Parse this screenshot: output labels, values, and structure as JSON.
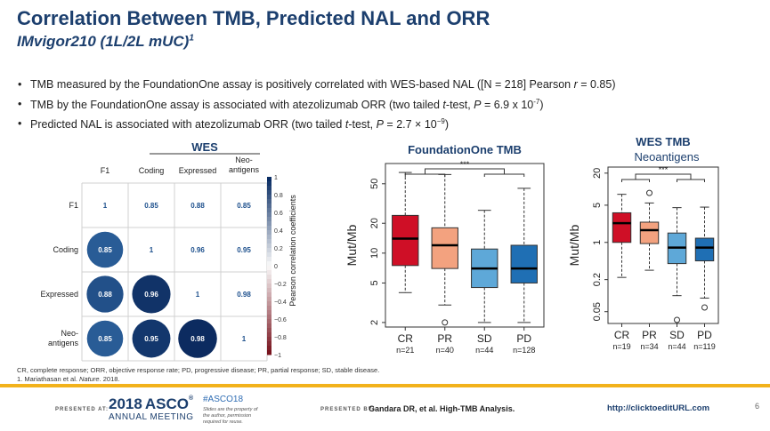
{
  "slide": {
    "title": "Correlation Between TMB, Predicted NAL and ORR",
    "subtitle": "IMvigor210 (1L/2L mUC)",
    "subtitle_ref": "1",
    "page_number": "6"
  },
  "bullets": [
    {
      "pre": "TMB measured by the FoundationOne assay is positively correlated with WES-based NAL ([N = 218] Pearson ",
      "r": "r",
      "post": " = 0.85)"
    },
    {
      "pre": "TMB by the FoundationOne assay is associated with atezolizumab ORR (two tailed ",
      "t": "t",
      "mid": "-test, ",
      "p": "P",
      "val": " = 6.9 x 10",
      "exp": "-7",
      "post": ")"
    },
    {
      "pre": "Predicted NAL is associated with atezolizumab ORR (two tailed ",
      "t": "t",
      "mid": "-test, ",
      "p": "P",
      "val": " = 2.7 × 10",
      "exp": "−9",
      "post": ")"
    }
  ],
  "colors": {
    "title": "#1c3f6e",
    "cr": "#cf0f26",
    "pr": "#f3a27f",
    "sd": "#5ea8d8",
    "pd": "#1f6fb4",
    "accent": "#f2b21b"
  },
  "chart_data": [
    {
      "type": "heatmap",
      "title": "WES",
      "columns": [
        "F1",
        "Coding",
        "Expressed",
        "Neo-antigens"
      ],
      "rows": [
        "F1",
        "Coding",
        "Expressed",
        "Neo-antigens"
      ],
      "values": [
        [
          1,
          0.85,
          0.88,
          0.85
        ],
        [
          0.85,
          1,
          0.96,
          0.95
        ],
        [
          0.88,
          0.96,
          1,
          0.98
        ],
        [
          0.85,
          0.95,
          0.98,
          1
        ]
      ],
      "colorbar_label": "Pearson correlation coefficients",
      "colorbar_ticks": [
        "1",
        "0.8",
        "0.6",
        "0.4",
        "0.2",
        "0",
        "−0.2",
        "−0.4",
        "−0.6",
        "−0.8",
        "−1"
      ]
    },
    {
      "type": "boxplot",
      "title": "FoundationOne TMB",
      "ylabel": "Mut/Mb",
      "scale": "log",
      "yticks": [
        "2",
        "5",
        "10",
        "20",
        "50"
      ],
      "categories": [
        "CR",
        "PR",
        "SD",
        "PD"
      ],
      "n_labels": [
        "n=21",
        "n=40",
        "n=44",
        "n=128"
      ],
      "boxes": [
        {
          "whisker_low": 4,
          "q1": 7.5,
          "median": 14,
          "q3": 24,
          "whisker_high": 65,
          "outliers": []
        },
        {
          "whisker_low": 3,
          "q1": 7,
          "median": 12,
          "q3": 18,
          "whisker_high": 62,
          "outliers": [
            2
          ]
        },
        {
          "whisker_low": 2,
          "q1": 4.5,
          "median": 7,
          "q3": 11,
          "whisker_high": 27,
          "outliers": []
        },
        {
          "whisker_low": 2,
          "q1": 5,
          "median": 7,
          "q3": 12,
          "whisker_high": 45,
          "outliers": []
        }
      ],
      "significance": "***"
    },
    {
      "type": "boxplot",
      "title": "WES TMB",
      "subtitle": "Neoantigens",
      "ylabel": "Mut/Mb",
      "scale": "log",
      "yticks": [
        "0.05",
        "0.2",
        "1",
        "5",
        "20"
      ],
      "categories": [
        "CR",
        "PR",
        "SD",
        "PD"
      ],
      "n_labels": [
        "n=19",
        "n=34",
        "n=44",
        "n=119"
      ],
      "boxes": [
        {
          "whisker_low": 0.22,
          "q1": 1.0,
          "median": 2.3,
          "q3": 3.6,
          "whisker_high": 8,
          "outliers": []
        },
        {
          "whisker_low": 0.3,
          "q1": 0.95,
          "median": 1.7,
          "q3": 2.4,
          "whisker_high": 5.5,
          "outliers": [
            8.5
          ]
        },
        {
          "whisker_low": 0.1,
          "q1": 0.4,
          "median": 0.8,
          "q3": 1.5,
          "whisker_high": 4.5,
          "outliers": [
            0.035
          ]
        },
        {
          "whisker_low": 0.09,
          "q1": 0.45,
          "median": 0.8,
          "q3": 1.2,
          "whisker_high": 4.6,
          "outliers": [
            0.06
          ]
        }
      ],
      "significance": "***"
    }
  ],
  "footnote": {
    "line1": "CR, complete response; ORR, objective response rate; PD, progressive disease; PR, partial response; SD, stable disease.",
    "line2_pre": "1. Mariathasan et al. ",
    "line2_journal": "Nature",
    "line2_post": ". 2018."
  },
  "footer": {
    "presented_at": "PRESENTED AT:",
    "asco_year": "2018",
    "asco_brand": "ASCO",
    "asco_meeting": "ANNUAL MEETING",
    "hashtag": "#ASCO18",
    "slides_note": "Slides are the property of the author, permission required for reuse.",
    "presented_by": "PRESENTED BY:",
    "presenter": "Gandara DR, et al. High-TMB Analysis.",
    "url": "http://clicktoeditURL.com"
  }
}
